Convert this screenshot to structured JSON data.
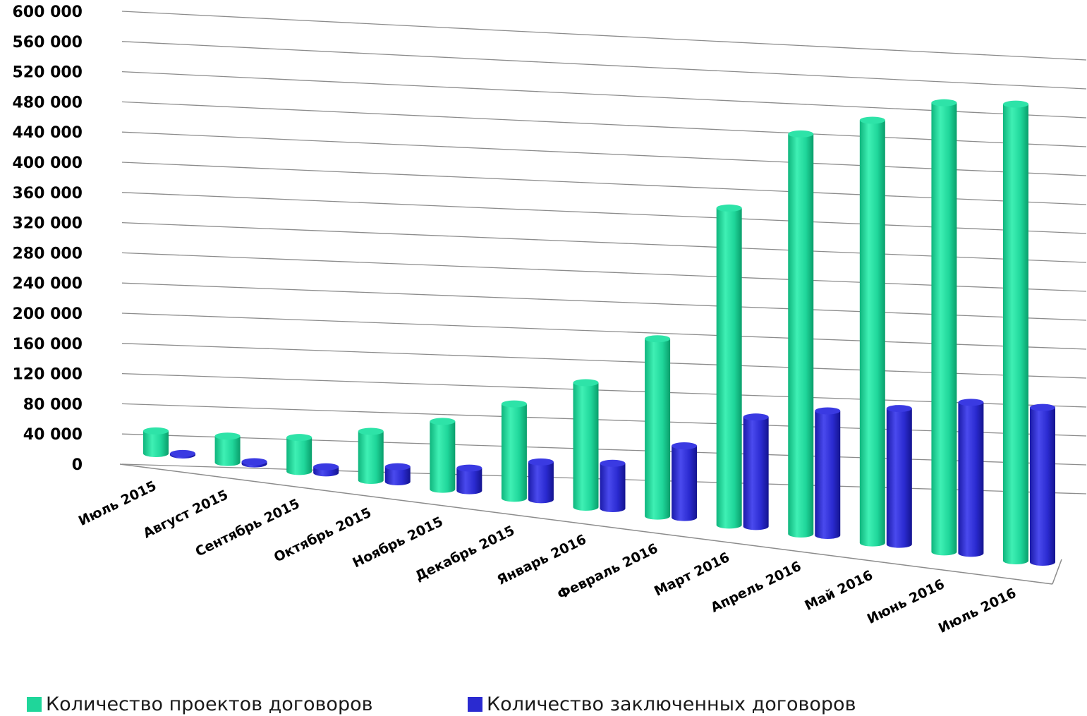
{
  "colors": {
    "projects": "#1fd69a",
    "contracts": "#2a2ad0",
    "grid": "#8c8c8c",
    "text": "#000000"
  },
  "chart_data": {
    "type": "bar",
    "title": "",
    "xlabel": "",
    "ylabel": "",
    "ylim": [
      0,
      600000
    ],
    "yticks": [
      "0",
      "40 000",
      "80 000",
      "120 000",
      "160 000",
      "200 000",
      "240 000",
      "280 000",
      "320 000",
      "360 000",
      "400 000",
      "440 000",
      "480 000",
      "520 000",
      "560 000",
      "600 000"
    ],
    "categories": [
      "Июль 2015",
      "Август 2015",
      "Сентябрь 2015",
      "Октябрь 2015",
      "Ноябрь 2015",
      "Декабрь 2015",
      "Январь 2016",
      "Февраль 2016",
      "Март 2016",
      "Апрель 2016",
      "Май 2016",
      "Июнь 2016",
      "Июль 2016"
    ],
    "series": [
      {
        "name": "Количество проектов договоров",
        "values": [
          30000,
          35000,
          45000,
          65000,
          90000,
          125000,
          165000,
          235000,
          420000,
          530000,
          560000,
          595000,
          605000
        ]
      },
      {
        "name": "Количество заключенных договоров",
        "values": [
          2000,
          3000,
          8000,
          20000,
          30000,
          50000,
          60000,
          95000,
          145000,
          165000,
          180000,
          200000,
          205000
        ]
      }
    ],
    "grid": true,
    "legend_position": "bottom",
    "style": "3d-cylinders"
  }
}
